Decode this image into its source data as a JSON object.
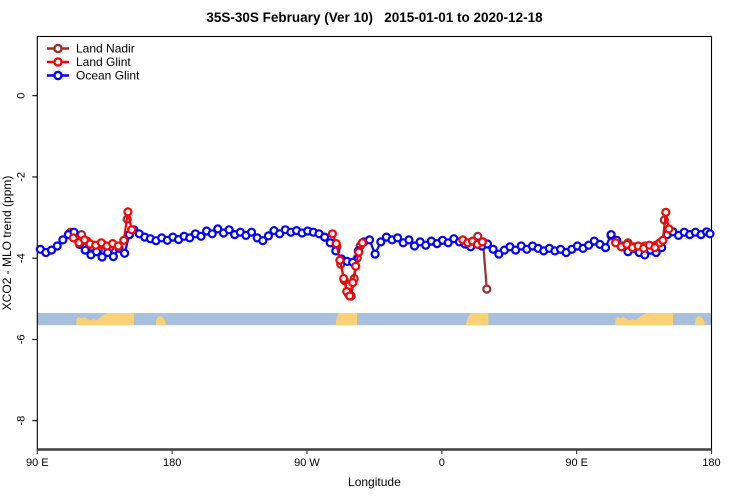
{
  "title": "35S-30S February (Ver 10)   2015-01-01 to 2020-12-18",
  "chart_data": {
    "type": "line",
    "title": "35S-30S February (Ver 10)   2015-01-01 to 2020-12-18",
    "xlabel": "Longitude",
    "ylabel": "XCO2 - MLO trend (ppm)",
    "grid": false,
    "x_axis": {
      "tick_labels": [
        "90 E",
        "180",
        "90 W",
        "0",
        "90 E",
        "180"
      ],
      "tick_positions_deg": [
        0,
        90,
        180,
        270,
        360,
        450
      ],
      "span_deg": [
        0,
        450
      ],
      "description": "longitude starting at 90E and wrapping eastward 450 degrees"
    },
    "y_axis": {
      "tick_labels": [
        "0",
        "-2",
        "-4",
        "-6",
        "-8"
      ],
      "tick_values": [
        0,
        -2,
        -4,
        -6,
        -8
      ],
      "ylim": [
        -8.9,
        0.9
      ]
    },
    "legend": {
      "position": "top-left",
      "entries": [
        {
          "label": "Land Nadir",
          "color": "#A52A2A"
        },
        {
          "label": "Land Glint",
          "color": "#FF0000"
        },
        {
          "label": "Ocean Glint",
          "color": "#0000FF"
        }
      ]
    },
    "series": [
      {
        "name": "Land Nadir",
        "color": "#A52A2A",
        "z_order": 0,
        "segments": [
          [
            [
              22,
              -3.36
            ],
            [
              25.75,
              -3.48
            ],
            [
              29.5,
              -3.42
            ],
            [
              33.25,
              -3.58
            ],
            [
              37,
              -3.72
            ],
            [
              40.75,
              -3.8
            ],
            [
              44.5,
              -3.68
            ],
            [
              48.25,
              -3.76
            ]
          ],
          [
            [
              60,
              -3.04
            ]
          ],
          [
            [
              200,
              -3.72
            ],
            [
              202.5,
              -4.15
            ],
            [
              205,
              -4.55
            ],
            [
              207.5,
              -4.88
            ],
            [
              209.5,
              -4.93
            ],
            [
              211.5,
              -4.5
            ],
            [
              213.5,
              -4.0
            ],
            [
              215.5,
              -3.7
            ]
          ],
          [
            [
              294,
              -3.46
            ],
            [
              297.5,
              -3.6
            ],
            [
              300,
              -4.76
            ]
          ],
          [
            [
              383,
              -3.45
            ],
            [
              386.75,
              -3.58
            ],
            [
              390.5,
              -3.7
            ],
            [
              394.25,
              -3.62
            ],
            [
              398,
              -3.72
            ],
            [
              401.75,
              -3.8
            ],
            [
              405.5,
              -3.7
            ],
            [
              409.25,
              -3.78
            ],
            [
              413,
              -3.68
            ]
          ],
          [
            [
              418.5,
              -3.06
            ]
          ]
        ]
      },
      {
        "name": "Land Glint",
        "color": "#FF0000",
        "z_order": 2,
        "segments": [
          [
            [
              24,
              -3.5
            ],
            [
              27.75,
              -3.62
            ],
            [
              31.5,
              -3.55
            ],
            [
              35.25,
              -3.65
            ],
            [
              39,
              -3.68
            ],
            [
              42.75,
              -3.62
            ],
            [
              46.5,
              -3.7
            ],
            [
              50.25,
              -3.64
            ],
            [
              54,
              -3.7
            ],
            [
              57.75,
              -3.56
            ],
            [
              60.5,
              -2.86
            ],
            [
              63,
              -3.3
            ]
          ],
          [
            [
              197,
              -3.4
            ],
            [
              199.5,
              -3.64
            ],
            [
              202,
              -4.05
            ],
            [
              204.5,
              -4.5
            ],
            [
              206.5,
              -4.82
            ],
            [
              208.5,
              -4.93
            ],
            [
              210.5,
              -4.6
            ],
            [
              212.5,
              -4.2
            ],
            [
              214.5,
              -3.85
            ],
            [
              217,
              -3.62
            ]
          ],
          [
            [
              284,
              -3.55
            ],
            [
              287.25,
              -3.62
            ],
            [
              290.5,
              -3.58
            ],
            [
              293.75,
              -3.66
            ],
            [
              297,
              -3.6
            ]
          ],
          [
            [
              386,
              -3.62
            ],
            [
              389.75,
              -3.72
            ],
            [
              393.5,
              -3.66
            ],
            [
              397.25,
              -3.74
            ],
            [
              401,
              -3.7
            ],
            [
              404.75,
              -3.76
            ],
            [
              408.5,
              -3.68
            ],
            [
              412.25,
              -3.74
            ],
            [
              415.5,
              -3.62
            ],
            [
              417.5,
              -3.56
            ],
            [
              419.5,
              -2.87
            ],
            [
              421.5,
              -3.28
            ]
          ]
        ]
      },
      {
        "name": "Ocean Glint",
        "color": "#0000FF",
        "z_order": 1,
        "segments": [
          [
            [
              2,
              -3.78
            ],
            [
              5.75,
              -3.86
            ],
            [
              9.5,
              -3.8
            ],
            [
              13.25,
              -3.7
            ],
            [
              17,
              -3.55
            ],
            [
              20.75,
              -3.42
            ],
            [
              24.5,
              -3.36
            ],
            [
              28.25,
              -3.66
            ],
            [
              32,
              -3.8
            ],
            [
              35.75,
              -3.92
            ],
            [
              39.5,
              -3.84
            ],
            [
              43.25,
              -3.97
            ],
            [
              47,
              -3.86
            ],
            [
              50.75,
              -3.96
            ],
            [
              54.5,
              -3.76
            ],
            [
              58.25,
              -3.88
            ],
            [
              61.5,
              -3.42
            ],
            [
              64.5,
              -3.3
            ],
            [
              68,
              -3.4
            ],
            [
              71.75,
              -3.48
            ],
            [
              75.5,
              -3.52
            ],
            [
              79.25,
              -3.57
            ],
            [
              83,
              -3.5
            ],
            [
              86.75,
              -3.56
            ],
            [
              90.5,
              -3.48
            ],
            [
              94.25,
              -3.54
            ],
            [
              98,
              -3.46
            ],
            [
              101.75,
              -3.5
            ],
            [
              105.5,
              -3.4
            ],
            [
              109.25,
              -3.46
            ],
            [
              113,
              -3.33
            ],
            [
              116.75,
              -3.4
            ],
            [
              120.5,
              -3.28
            ],
            [
              124.25,
              -3.38
            ],
            [
              128,
              -3.3
            ],
            [
              131.75,
              -3.42
            ],
            [
              135.5,
              -3.36
            ],
            [
              139.25,
              -3.44
            ],
            [
              143,
              -3.36
            ],
            [
              146.75,
              -3.5
            ],
            [
              150.5,
              -3.57
            ],
            [
              154.25,
              -3.45
            ],
            [
              158,
              -3.32
            ],
            [
              161.75,
              -3.4
            ],
            [
              165.5,
              -3.3
            ],
            [
              169.25,
              -3.36
            ],
            [
              173,
              -3.32
            ],
            [
              176.75,
              -3.38
            ],
            [
              180.5,
              -3.33
            ],
            [
              184.25,
              -3.36
            ],
            [
              188,
              -3.4
            ],
            [
              191.75,
              -3.48
            ],
            [
              195.5,
              -3.62
            ],
            [
              199.25,
              -3.82
            ],
            [
              203,
              -4.02
            ],
            [
              206.75,
              -4.08
            ],
            [
              210.5,
              -4.1
            ],
            [
              214.25,
              -3.82
            ],
            [
              218,
              -3.6
            ],
            [
              221.75,
              -3.55
            ],
            [
              225.5,
              -3.9
            ],
            [
              229.25,
              -3.6
            ],
            [
              233,
              -3.48
            ],
            [
              236.75,
              -3.55
            ],
            [
              240.5,
              -3.5
            ],
            [
              244.25,
              -3.62
            ],
            [
              248,
              -3.55
            ],
            [
              251.75,
              -3.7
            ],
            [
              255.5,
              -3.6
            ],
            [
              259.25,
              -3.68
            ],
            [
              263,
              -3.58
            ],
            [
              266.75,
              -3.64
            ],
            [
              270.5,
              -3.56
            ],
            [
              274.25,
              -3.62
            ],
            [
              278,
              -3.52
            ],
            [
              281.75,
              -3.6
            ],
            [
              285.5,
              -3.65
            ],
            [
              289.25,
              -3.72
            ],
            [
              293,
              -3.62
            ],
            [
              296.75,
              -3.7
            ],
            [
              300.5,
              -3.65
            ],
            [
              304.25,
              -3.78
            ],
            [
              308,
              -3.9
            ],
            [
              311.75,
              -3.8
            ],
            [
              315.5,
              -3.72
            ],
            [
              319.25,
              -3.8
            ],
            [
              323,
              -3.7
            ],
            [
              326.75,
              -3.78
            ],
            [
              330.5,
              -3.7
            ],
            [
              334.25,
              -3.76
            ],
            [
              338,
              -3.82
            ],
            [
              341.75,
              -3.76
            ],
            [
              345.5,
              -3.82
            ],
            [
              349.25,
              -3.78
            ],
            [
              353,
              -3.86
            ],
            [
              356.75,
              -3.78
            ],
            [
              360.5,
              -3.7
            ],
            [
              364.25,
              -3.76
            ],
            [
              368,
              -3.68
            ],
            [
              371.75,
              -3.58
            ],
            [
              375.5,
              -3.66
            ],
            [
              379.25,
              -3.74
            ],
            [
              383,
              -3.42
            ],
            [
              386.75,
              -3.56
            ],
            [
              390.5,
              -3.72
            ],
            [
              394.25,
              -3.84
            ],
            [
              398,
              -3.76
            ],
            [
              401.75,
              -3.86
            ],
            [
              405.5,
              -3.92
            ],
            [
              409.25,
              -3.8
            ],
            [
              413,
              -3.86
            ],
            [
              416.75,
              -3.74
            ],
            [
              420.5,
              -3.42
            ],
            [
              424.25,
              -3.35
            ],
            [
              428,
              -3.44
            ],
            [
              431.75,
              -3.36
            ],
            [
              435.5,
              -3.42
            ],
            [
              439.25,
              -3.36
            ],
            [
              443,
              -3.42
            ],
            [
              446.75,
              -3.35
            ],
            [
              449,
              -3.4
            ]
          ]
        ]
      }
    ],
    "map_strip": {
      "ocean_color": "#A9C0DC",
      "land_color": "#F9D178",
      "value_range": [
        -5.35,
        -5.65
      ],
      "land_patches": [
        {
          "name": "australia",
          "top_profile": [
            [
              26,
              0.55
            ],
            [
              27.5,
              0.3
            ],
            [
              29.5,
              0.45
            ],
            [
              31.5,
              0.3
            ],
            [
              33.5,
              0.5
            ],
            [
              35.5,
              0.6
            ],
            [
              37.5,
              0.5
            ],
            [
              39.5,
              0.6
            ],
            [
              41.5,
              0.4
            ],
            [
              43.5,
              0.2
            ],
            [
              45.5,
              0.08
            ],
            [
              47,
              0
            ],
            [
              64.5,
              0
            ]
          ]
        },
        {
          "name": "new-zealand",
          "top_profile": [
            [
              79.2,
              0.65
            ],
            [
              80.3,
              0.35
            ],
            [
              81.8,
              0.25
            ],
            [
              83.3,
              0.3
            ],
            [
              84.8,
              0.55
            ],
            [
              85.8,
              0.8
            ]
          ]
        },
        {
          "name": "south-america",
          "top_profile": [
            [
              199.4,
              0.7
            ],
            [
              200.2,
              0.2
            ],
            [
              201,
              0
            ],
            [
              213.4,
              0
            ]
          ]
        },
        {
          "name": "africa",
          "top_profile": [
            [
              286.2,
              0.85
            ],
            [
              287.3,
              0.4
            ],
            [
              288.6,
              0.12
            ],
            [
              290,
              0.02
            ],
            [
              291,
              0
            ],
            [
              301,
              0
            ]
          ]
        },
        {
          "name": "australia-repeat",
          "top_profile": [
            [
              385.8,
              0.55
            ],
            [
              387.3,
              0.3
            ],
            [
              389.3,
              0.45
            ],
            [
              391.3,
              0.3
            ],
            [
              393.3,
              0.5
            ],
            [
              395.3,
              0.6
            ],
            [
              397.3,
              0.5
            ],
            [
              399.3,
              0.6
            ],
            [
              401.3,
              0.4
            ],
            [
              403.3,
              0.2
            ],
            [
              405.3,
              0.08
            ],
            [
              406.8,
              0
            ],
            [
              424.3,
              0
            ]
          ]
        },
        {
          "name": "new-zealand-repeat",
          "top_profile": [
            [
              439,
              0.65
            ],
            [
              440.1,
              0.35
            ],
            [
              441.6,
              0.25
            ],
            [
              443.1,
              0.3
            ],
            [
              444.6,
              0.55
            ],
            [
              445.6,
              0.8
            ]
          ]
        }
      ]
    }
  }
}
